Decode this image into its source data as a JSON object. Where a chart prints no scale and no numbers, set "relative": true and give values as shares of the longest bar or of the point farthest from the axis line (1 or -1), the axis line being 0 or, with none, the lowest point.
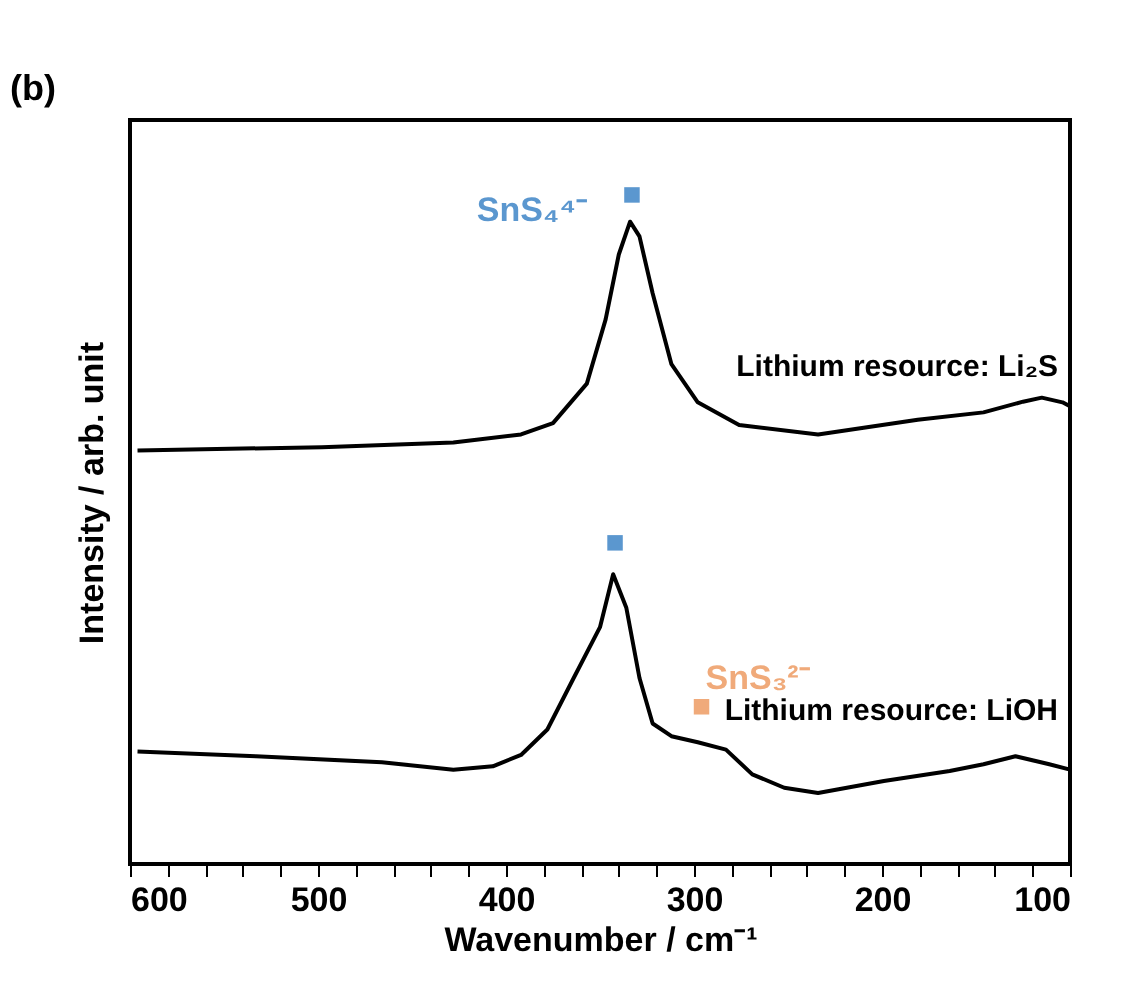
{
  "chart_data": {
    "type": "line",
    "relative": true,
    "xlabel": "Wavenumber / cm⁻¹",
    "ylabel": "Intensity / arb. unit",
    "xlim": [
      600,
      100
    ],
    "xticks": [
      600,
      {
        "value": 580,
        "label": null
      },
      {
        "value": 560,
        "label": null
      },
      {
        "value": 540,
        "label": null
      },
      {
        "value": 520,
        "label": null
      },
      500,
      {
        "value": 480,
        "label": null
      },
      {
        "value": 460,
        "label": null
      },
      {
        "value": 440,
        "label": null
      },
      {
        "value": 420,
        "label": null
      },
      400,
      {
        "value": 380,
        "label": null
      },
      {
        "value": 360,
        "label": null
      },
      {
        "value": 340,
        "label": null
      },
      {
        "value": 320,
        "label": null
      },
      300,
      {
        "value": 280,
        "label": null
      },
      {
        "value": 260,
        "label": null
      },
      {
        "value": 240,
        "label": null
      },
      {
        "value": 220,
        "label": null
      },
      200,
      {
        "value": 180,
        "label": null
      },
      {
        "value": 160,
        "label": null
      },
      {
        "value": 140,
        "label": null
      },
      {
        "value": 120,
        "label": null
      },
      100
    ],
    "grid": false,
    "legend": false,
    "line_style": "solid",
    "marker": "none",
    "series": [
      {
        "name": "Lithium resource: Li₂S",
        "color": "#000000",
        "x": [
          596,
          498,
          428,
          392,
          375,
          357,
          347,
          340,
          334,
          329,
          322,
          312,
          298,
          276,
          234,
          181,
          146,
          125,
          115,
          104,
          100
        ],
        "values": [
          0.618,
          0.623,
          0.63,
          0.642,
          0.659,
          0.718,
          0.814,
          0.911,
          0.96,
          0.938,
          0.853,
          0.747,
          0.69,
          0.656,
          0.642,
          0.664,
          0.675,
          0.691,
          0.697,
          0.69,
          0.684
        ]
      },
      {
        "name": "Lithium resource: LiOH",
        "color": "#000000",
        "x": [
          596,
          533,
          466,
          428,
          407,
          392,
          378,
          364,
          350,
          343,
          336,
          329,
          322,
          312,
          298,
          283,
          269,
          252,
          234,
          199,
          164,
          146,
          129,
          111,
          100
        ],
        "values": [
          0.168,
          0.161,
          0.152,
          0.141,
          0.146,
          0.163,
          0.201,
          0.278,
          0.354,
          0.433,
          0.383,
          0.278,
          0.21,
          0.191,
          0.182,
          0.171,
          0.134,
          0.114,
          0.106,
          0.124,
          0.139,
          0.149,
          0.161,
          0.149,
          0.141
        ]
      },
      {
        "type": "scatter",
        "marker": "square",
        "color": "#5b97cf",
        "x": [
          333,
          342
        ],
        "values": [
          1.0,
          0.48
        ]
      },
      {
        "type": "scatter",
        "marker": "square",
        "color": "#f0aa7a",
        "x": [
          296
        ],
        "values": [
          0.235
        ]
      }
    ],
    "annotations": [
      "SnS₄⁴⁻",
      "SnS₃²⁻",
      "(b)"
    ]
  }
}
